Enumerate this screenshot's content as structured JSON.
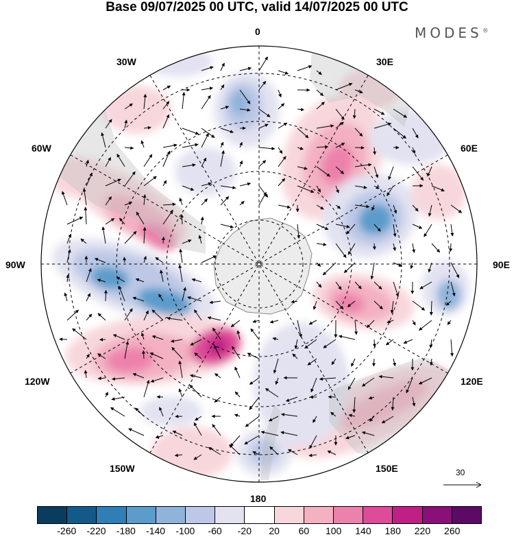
{
  "title": "Base 09/07/2025 00 UTC, valid 14/07/2025 00 UTC",
  "brand": "MODES",
  "brand_mark": "®",
  "longitude_labels": {
    "lon0": "0",
    "lon30e": "30E",
    "lon60e": "60E",
    "lon90e": "90E",
    "lon120e": "120E",
    "lon150e": "150E",
    "lon180": "180",
    "lon150w": "150W",
    "lon120w": "120W",
    "lon90w": "90W",
    "lon60w": "60W",
    "lon30w": "30W"
  },
  "reference_vector_label": "30",
  "colorbar": {
    "ticks": [
      "-260",
      "-220",
      "-180",
      "-140",
      "-100",
      "-60",
      "-20",
      "20",
      "60",
      "100",
      "140",
      "180",
      "220",
      "260"
    ],
    "colors": [
      "#0a3c5e",
      "#135a8a",
      "#2f7fb6",
      "#5b9ccb",
      "#8fb3da",
      "#bcc8e6",
      "#e2e2f1",
      "#ffffff",
      "#f8d7dc",
      "#f3b1c2",
      "#ec82ac",
      "#de4b98",
      "#c01f86",
      "#8b0f79",
      "#5b0a66"
    ]
  },
  "map_style": {
    "antarctica_fill": "#ececec",
    "land_overlay": "#b9b9b9",
    "grid_line": "#000000"
  }
}
